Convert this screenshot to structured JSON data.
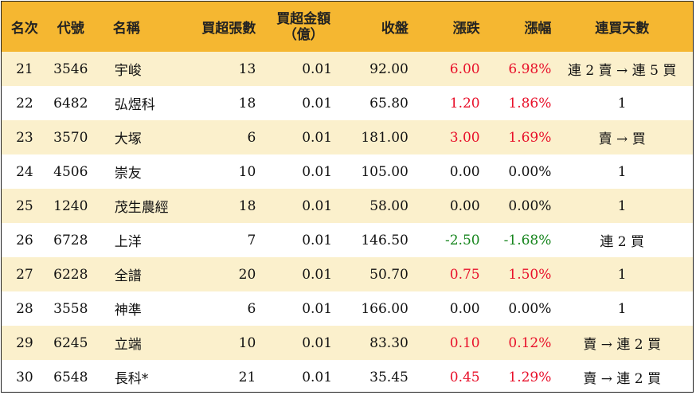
{
  "headers": {
    "rank": "名次",
    "code": "代號",
    "name": "名稱",
    "net_buy_lots": "買超張數",
    "net_buy_amount_line1": "買超金額",
    "net_buy_amount_line2": "（億）",
    "close": "收盤",
    "change": "漲跌",
    "change_pct": "漲幅",
    "consecutive_days": "連買天數"
  },
  "colors": {
    "header_bg": "#F5B731",
    "odd_row_bg": "#FBF0CC",
    "even_row_bg": "#FFFFFF",
    "up": "#E8102A",
    "down": "#16851D",
    "flat": "#111111"
  },
  "rows": [
    {
      "rank": "21",
      "code": "3546",
      "name": "宇峻",
      "lots": "13",
      "amount": "0.01",
      "close": "92.00",
      "change": "6.00",
      "pct": "6.98%",
      "trend": "up",
      "days": "連 2 賣 → 連 5 買"
    },
    {
      "rank": "22",
      "code": "6482",
      "name": "弘煜科",
      "lots": "18",
      "amount": "0.01",
      "close": "65.80",
      "change": "1.20",
      "pct": "1.86%",
      "trend": "up",
      "days": "1"
    },
    {
      "rank": "23",
      "code": "3570",
      "name": "大塚",
      "lots": "6",
      "amount": "0.01",
      "close": "181.00",
      "change": "3.00",
      "pct": "1.69%",
      "trend": "up",
      "days": "賣 → 買"
    },
    {
      "rank": "24",
      "code": "4506",
      "name": "崇友",
      "lots": "10",
      "amount": "0.01",
      "close": "105.00",
      "change": "0.00",
      "pct": "0.00%",
      "trend": "flat",
      "days": "1"
    },
    {
      "rank": "25",
      "code": "1240",
      "name": "茂生農經",
      "lots": "18",
      "amount": "0.01",
      "close": "58.00",
      "change": "0.00",
      "pct": "0.00%",
      "trend": "flat",
      "days": "1"
    },
    {
      "rank": "26",
      "code": "6728",
      "name": "上洋",
      "lots": "7",
      "amount": "0.01",
      "close": "146.50",
      "change": "-2.50",
      "pct": "-1.68%",
      "trend": "down",
      "days": "連 2 買"
    },
    {
      "rank": "27",
      "code": "6228",
      "name": "全譜",
      "lots": "20",
      "amount": "0.01",
      "close": "50.70",
      "change": "0.75",
      "pct": "1.50%",
      "trend": "up",
      "days": "1"
    },
    {
      "rank": "28",
      "code": "3558",
      "name": "神準",
      "lots": "6",
      "amount": "0.01",
      "close": "166.00",
      "change": "0.00",
      "pct": "0.00%",
      "trend": "flat",
      "days": "1"
    },
    {
      "rank": "29",
      "code": "6245",
      "name": "立端",
      "lots": "10",
      "amount": "0.01",
      "close": "83.30",
      "change": "0.10",
      "pct": "0.12%",
      "trend": "up",
      "days": "賣 → 連 2 買"
    },
    {
      "rank": "30",
      "code": "6548",
      "name": "長科*",
      "lots": "21",
      "amount": "0.01",
      "close": "35.45",
      "change": "0.45",
      "pct": "1.29%",
      "trend": "up",
      "days": "賣 → 連 2 買"
    }
  ]
}
